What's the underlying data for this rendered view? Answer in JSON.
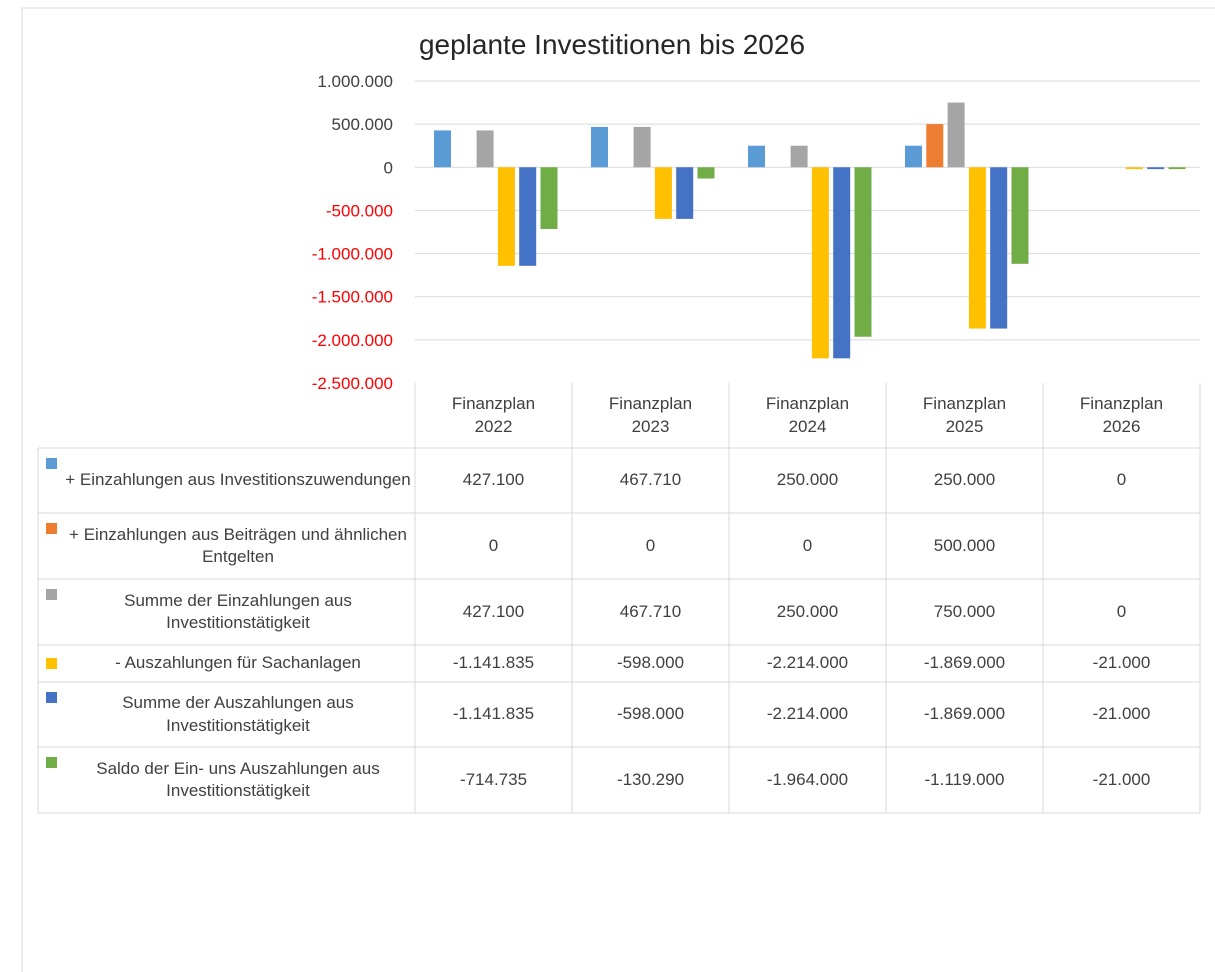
{
  "chart_data": {
    "type": "bar",
    "title": "geplante Investitionen bis 2026",
    "categories": [
      "Finanzplan 2022",
      "Finanzplan 2023",
      "Finanzplan 2024",
      "Finanzplan 2025",
      "Finanzplan 2026"
    ],
    "series": [
      {
        "name": "+ Einzahlungen aus Investitionszuwendungen",
        "color": "#5b9bd5",
        "values": [
          427100,
          467710,
          250000,
          250000,
          0
        ],
        "value_labels": [
          "427.100",
          "467.710",
          "250.000",
          "250.000",
          "0"
        ]
      },
      {
        "name": "+ Einzahlungen aus Beiträgen und ähnlichen Entgelten",
        "color": "#ed7d31",
        "values": [
          0,
          0,
          0,
          500000,
          null
        ],
        "value_labels": [
          "0",
          "0",
          "0",
          "500.000",
          null
        ]
      },
      {
        "name": "Summe der Einzahlungen aus Investitionstätigkeit",
        "color": "#a5a5a5",
        "values": [
          427100,
          467710,
          250000,
          750000,
          0
        ],
        "value_labels": [
          "427.100",
          "467.710",
          "250.000",
          "750.000",
          "0"
        ]
      },
      {
        "name": "- Auszahlungen für Sachanlagen",
        "color": "#ffc000",
        "values": [
          -1141835,
          -598000,
          -2214000,
          -1869000,
          -21000
        ],
        "value_labels": [
          "-1.141.835",
          "-598.000",
          "-2.214.000",
          "-1.869.000",
          "-21.000"
        ]
      },
      {
        "name": "Summe der Auszahlungen aus Investitionstätigkeit",
        "color": "#4472c4",
        "values": [
          -1141835,
          -598000,
          -2214000,
          -1869000,
          -21000
        ],
        "value_labels": [
          "-1.141.835",
          "-598.000",
          "-2.214.000",
          "-1.869.000",
          "-21.000"
        ]
      },
      {
        "name": "Saldo der Ein- uns Auszahlungen aus Investitionstätigkeit",
        "color": "#70ad47",
        "values": [
          -714735,
          -130290,
          -1964000,
          -1119000,
          -21000
        ],
        "value_labels": [
          "-714.735",
          "-130.290",
          "-1.964.000",
          "-1.119.000",
          "-21.000"
        ]
      }
    ],
    "ylim": [
      -2500000,
      1000000
    ],
    "yticks": [
      {
        "value": -2500000,
        "label": "-2.500.000"
      },
      {
        "value": -2000000,
        "label": "-2.000.000"
      },
      {
        "value": -1500000,
        "label": "-1.500.000"
      },
      {
        "value": -1000000,
        "label": "-1.000.000"
      },
      {
        "value": -500000,
        "label": "-500.000"
      },
      0,
      {
        "value": 500000,
        "label": "500.000"
      },
      {
        "value": 1000000,
        "label": "1.000.000"
      }
    ],
    "grid": true,
    "negative_tick_color": "#ff0000"
  }
}
